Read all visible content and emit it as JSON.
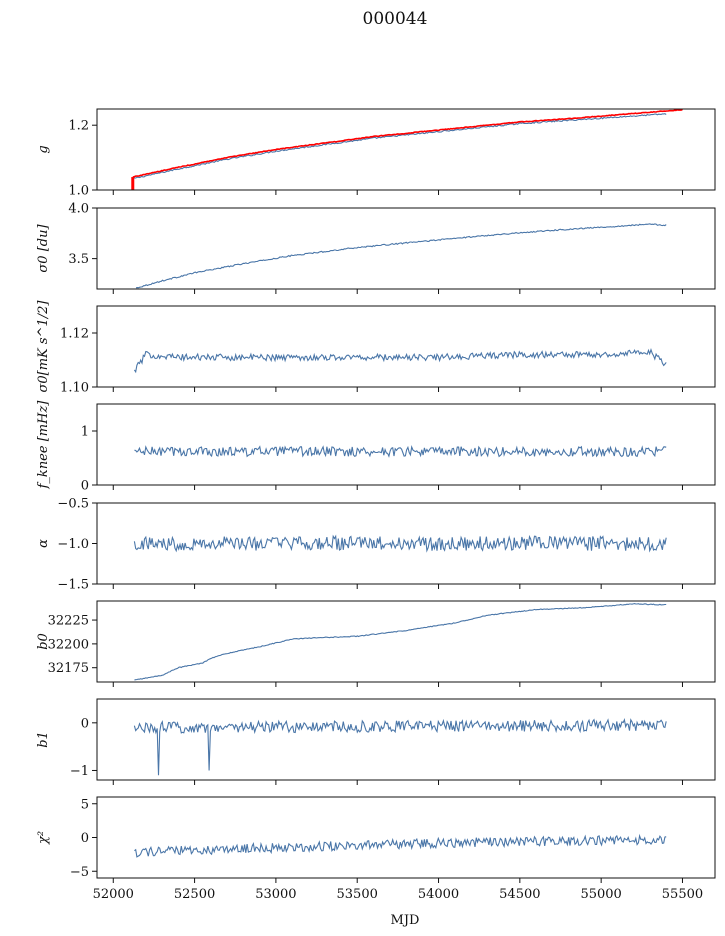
{
  "figure": {
    "title": "000044",
    "xlabel": "MJD"
  },
  "chart_data": [
    {
      "type": "line",
      "ylabel": "g",
      "xlim": [
        51900,
        55700
      ],
      "ylim": [
        1.0,
        1.25
      ],
      "yticks": [
        1.0,
        1.2
      ],
      "ytick_labels": [
        "1.0",
        "1.2"
      ],
      "series": [
        {
          "color": "#4a76a8",
          "x": [
            52120,
            52400,
            52700,
            53000,
            53300,
            53600,
            53900,
            54200,
            54500,
            54800,
            55100,
            55400
          ],
          "y": [
            1.035,
            1.065,
            1.095,
            1.12,
            1.14,
            1.16,
            1.175,
            1.19,
            1.205,
            1.215,
            1.225,
            1.235
          ],
          "noise": 0.002
        },
        {
          "color": "#ff0000",
          "x": [
            52120,
            52400,
            52700,
            53000,
            53300,
            53600,
            53900,
            54200,
            54500,
            54800,
            55100,
            55500
          ],
          "y": [
            1.04,
            1.07,
            1.1,
            1.125,
            1.145,
            1.165,
            1.18,
            1.195,
            1.21,
            1.22,
            1.232,
            1.248
          ],
          "noise": 0.001
        }
      ],
      "spike": {
        "x": 52120,
        "y_from": 1.0,
        "y_to": 1.04,
        "color": "#ff0000"
      }
    },
    {
      "type": "line",
      "ylabel": "σ0 [du]",
      "xlim": [
        51900,
        55700
      ],
      "ylim": [
        3.2,
        4.0
      ],
      "yticks": [
        3.5,
        4.0
      ],
      "ytick_labels": [
        "3.5",
        "4.0"
      ],
      "series": [
        {
          "color": "#4a76a8",
          "x": [
            52140,
            52300,
            52500,
            52800,
            53100,
            53500,
            53900,
            54300,
            54700,
            55000,
            55300,
            55400
          ],
          "y": [
            3.21,
            3.28,
            3.36,
            3.45,
            3.53,
            3.61,
            3.67,
            3.73,
            3.78,
            3.81,
            3.84,
            3.83
          ],
          "noise": 0.006
        }
      ]
    },
    {
      "type": "line",
      "ylabel": "σ0[mK s^1/2]",
      "xlim": [
        51900,
        55700
      ],
      "ylim": [
        1.1,
        1.13
      ],
      "yticks": [
        1.1,
        1.12
      ],
      "ytick_labels": [
        "1.10",
        "1.12"
      ],
      "series": [
        {
          "color": "#4a76a8",
          "x": [
            52130,
            52200,
            52400,
            52800,
            53500,
            54000,
            54500,
            55000,
            55300,
            55400
          ],
          "y": [
            1.106,
            1.112,
            1.111,
            1.111,
            1.111,
            1.111,
            1.112,
            1.112,
            1.113,
            1.108
          ],
          "noise": 0.0012
        }
      ]
    },
    {
      "type": "line",
      "ylabel": "f_knee [mHz]",
      "xlim": [
        51900,
        55700
      ],
      "ylim": [
        0,
        1.5
      ],
      "yticks": [
        0,
        1
      ],
      "ytick_labels": [
        "0",
        "1"
      ],
      "series": [
        {
          "color": "#4a76a8",
          "x": [
            52130,
            55400
          ],
          "y": [
            0.62,
            0.62
          ],
          "noise": 0.09
        }
      ]
    },
    {
      "type": "line",
      "ylabel": "α",
      "xlim": [
        51900,
        55700
      ],
      "ylim": [
        -1.5,
        -0.5
      ],
      "yticks": [
        -1.5,
        -1.0,
        -0.5
      ],
      "ytick_labels": [
        "−1.5",
        "−1.0",
        "−0.5"
      ],
      "series": [
        {
          "color": "#4a76a8",
          "x": [
            52130,
            55400
          ],
          "y": [
            -1.0,
            -1.0
          ],
          "noise": 0.09
        }
      ]
    },
    {
      "type": "line",
      "ylabel": "b0",
      "xlim": [
        51900,
        55700
      ],
      "ylim": [
        32160,
        32245
      ],
      "yticks": [
        32175,
        32200,
        32225
      ],
      "ytick_labels": [
        "32175",
        "32200",
        "32225"
      ],
      "series": [
        {
          "color": "#4a76a8",
          "x": [
            52130,
            52300,
            52400,
            52550,
            52600,
            52700,
            52900,
            53100,
            53200,
            53500,
            53800,
            54100,
            54300,
            54600,
            54900,
            55200,
            55400
          ],
          "y": [
            32162,
            32167,
            32175,
            32180,
            32185,
            32190,
            32197,
            32205,
            32206,
            32208,
            32214,
            32222,
            32230,
            32236,
            32238,
            32242,
            32241
          ],
          "noise": 0.4
        }
      ]
    },
    {
      "type": "line",
      "ylabel": "b1",
      "xlim": [
        51900,
        55700
      ],
      "ylim": [
        -1.2,
        0.5
      ],
      "yticks": [
        -1,
        0
      ],
      "ytick_labels": [
        "−1",
        "0"
      ],
      "series": [
        {
          "color": "#4a76a8",
          "x": [
            52130,
            55400
          ],
          "y": [
            -0.1,
            -0.05
          ],
          "noise": 0.12
        }
      ],
      "dips": [
        {
          "x": 52280,
          "y": -1.1
        },
        {
          "x": 52590,
          "y": -1.0
        }
      ]
    },
    {
      "type": "line",
      "ylabel": "χ²",
      "xlim": [
        51900,
        55700
      ],
      "ylim": [
        -6,
        6
      ],
      "yticks": [
        -5,
        0,
        5
      ],
      "ytick_labels": [
        "−5",
        "0",
        "5"
      ],
      "xticks": [
        52000,
        52500,
        53000,
        53500,
        54000,
        54500,
        55000,
        55500
      ],
      "xtick_labels": [
        "52000",
        "52500",
        "53000",
        "53500",
        "54000",
        "54500",
        "55000",
        "55500"
      ],
      "series": [
        {
          "color": "#4a76a8",
          "x": [
            52130,
            53000,
            54000,
            55400
          ],
          "y": [
            -2.2,
            -1.5,
            -0.8,
            -0.3
          ],
          "noise": 0.7
        }
      ]
    }
  ]
}
